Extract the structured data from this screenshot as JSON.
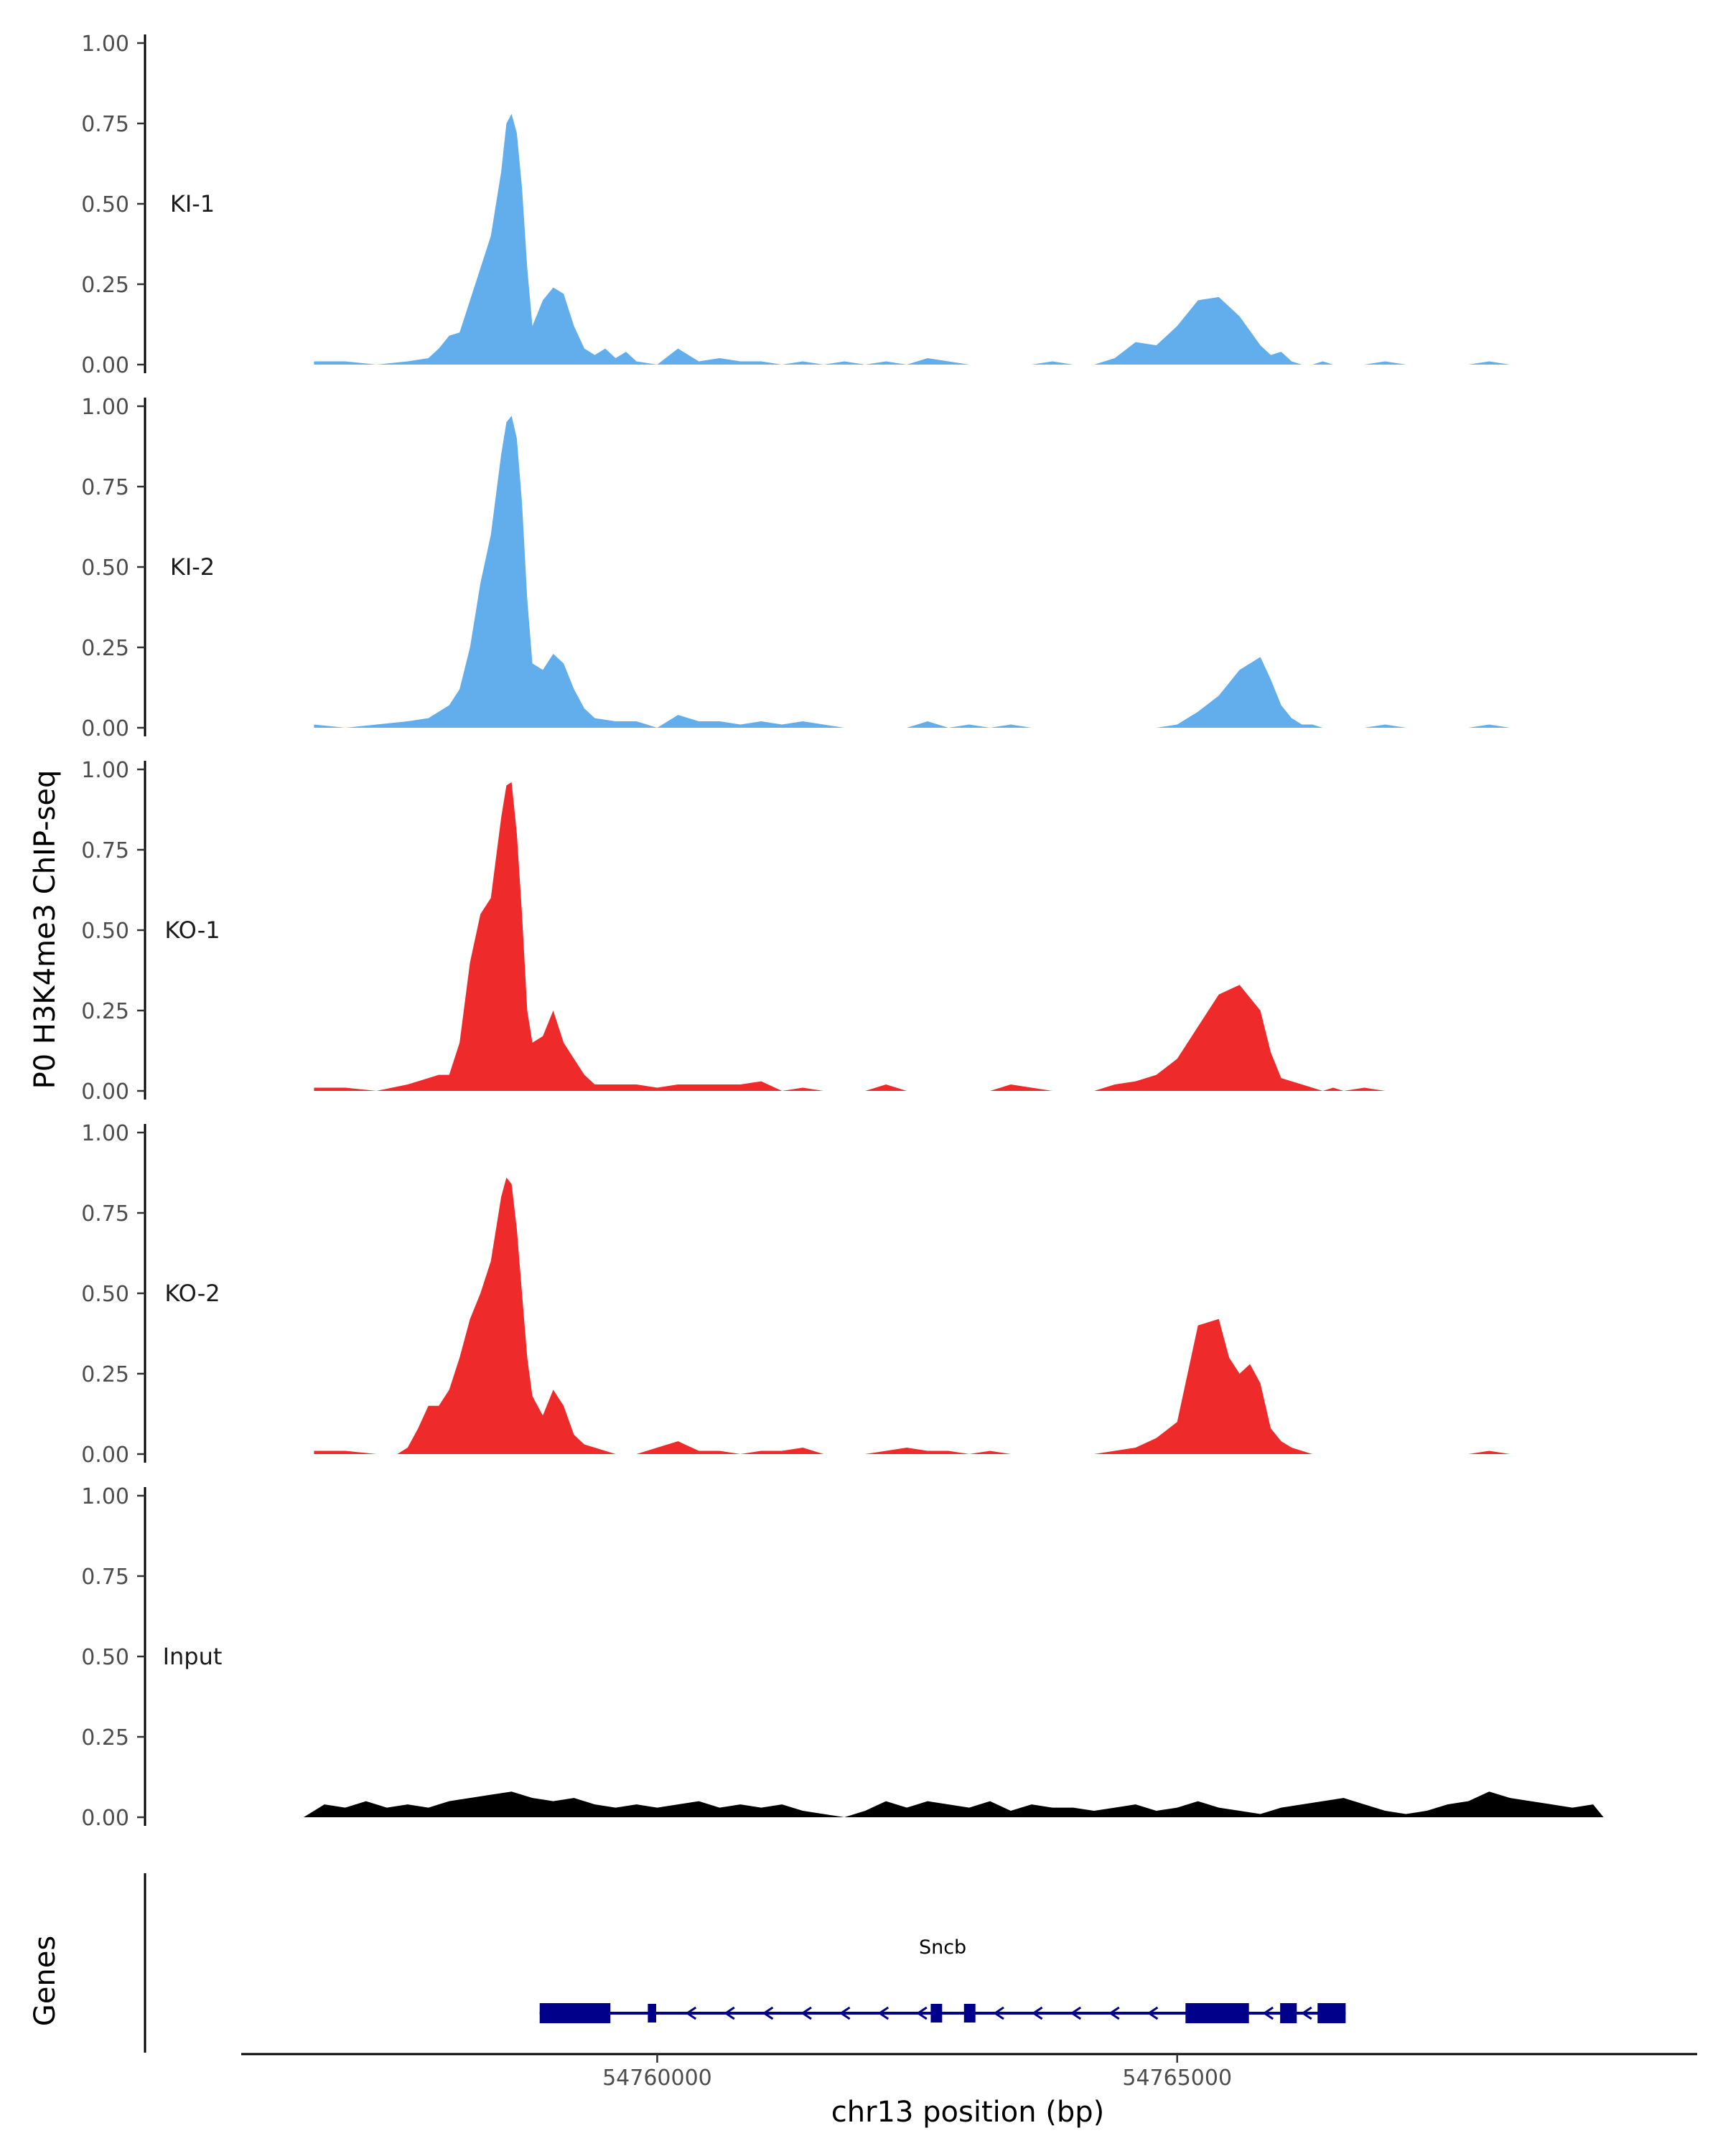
{
  "chart_data": {
    "type": "area",
    "ylabel": "P0 H3K4me3 ChIP-seq",
    "xlabel": "chr13 position (bp)",
    "xlim": [
      54756000,
      54770000
    ],
    "ylim": [
      0,
      1
    ],
    "ytick_labels": [
      "0.00",
      "0.25",
      "0.50",
      "0.75",
      "1.00"
    ],
    "ytick_values": [
      0,
      0.25,
      0.5,
      0.75,
      1
    ],
    "xtick_labels": [
      "54760000",
      "54765000"
    ],
    "xtick_values": [
      54760000,
      54765000
    ],
    "track_label_title": "Genes",
    "tracks": [
      {
        "name": "KI-1",
        "color": "#62aeec",
        "x": [
          54756700,
          54757000,
          54757300,
          54757600,
          54757800,
          54757900,
          54758000,
          54758100,
          54758200,
          54758300,
          54758400,
          54758500,
          54758550,
          54758600,
          54758650,
          54758700,
          54758750,
          54758800,
          54758900,
          54759000,
          54759100,
          54759200,
          54759300,
          54759400,
          54759500,
          54759600,
          54759700,
          54759800,
          54760000,
          54760200,
          54760400,
          54760600,
          54760800,
          54761000,
          54761200,
          54761400,
          54761600,
          54761800,
          54762000,
          54762200,
          54762400,
          54762600,
          54762800,
          54763000,
          54763200,
          54763400,
          54763600,
          54763800,
          54764000,
          54764200,
          54764400,
          54764600,
          54764800,
          54765000,
          54765200,
          54765400,
          54765600,
          54765800,
          54765900,
          54766000,
          54766100,
          54766200,
          54766300,
          54766400,
          54766500,
          54766600,
          54766700,
          54766800,
          54767000,
          54767200,
          54767400,
          54767600,
          54767800,
          54768000,
          54768200,
          54768400,
          54768600,
          54768800,
          54769000,
          54769100
        ],
        "y": [
          0.01,
          0.01,
          0.0,
          0.01,
          0.02,
          0.05,
          0.09,
          0.1,
          0.2,
          0.3,
          0.4,
          0.6,
          0.75,
          0.78,
          0.72,
          0.55,
          0.3,
          0.12,
          0.2,
          0.24,
          0.22,
          0.12,
          0.05,
          0.03,
          0.05,
          0.02,
          0.04,
          0.01,
          0.0,
          0.05,
          0.01,
          0.02,
          0.01,
          0.01,
          0.0,
          0.01,
          0.0,
          0.01,
          0.0,
          0.01,
          0.0,
          0.02,
          0.01,
          0.0,
          0.0,
          0.0,
          0.0,
          0.01,
          0.0,
          0.0,
          0.02,
          0.07,
          0.06,
          0.12,
          0.2,
          0.21,
          0.15,
          0.06,
          0.03,
          0.04,
          0.01,
          0.0,
          0.0,
          0.01,
          0.0,
          0.0,
          0.0,
          0.0,
          0.01,
          0.0,
          0.0,
          0.0,
          0.0,
          0.01,
          0.0,
          0.0,
          0.0,
          0.0,
          0.0,
          0.0
        ]
      },
      {
        "name": "KI-2",
        "color": "#62aeec",
        "x": [
          54756700,
          54757000,
          54757300,
          54757600,
          54757800,
          54757900,
          54758000,
          54758100,
          54758200,
          54758300,
          54758400,
          54758500,
          54758550,
          54758600,
          54758650,
          54758700,
          54758750,
          54758800,
          54758900,
          54759000,
          54759100,
          54759200,
          54759300,
          54759400,
          54759600,
          54759800,
          54760000,
          54760200,
          54760400,
          54760600,
          54760800,
          54761000,
          54761200,
          54761400,
          54761600,
          54761800,
          54762000,
          54762200,
          54762400,
          54762600,
          54762800,
          54763000,
          54763200,
          54763400,
          54763600,
          54763800,
          54764000,
          54764200,
          54764400,
          54764600,
          54764800,
          54765000,
          54765200,
          54765400,
          54765600,
          54765800,
          54765900,
          54766000,
          54766100,
          54766200,
          54766300,
          54766400,
          54766500,
          54766600,
          54766800,
          54767000,
          54767200,
          54767400,
          54767600,
          54767800,
          54768000,
          54768200,
          54768400,
          54768600,
          54768800,
          54769000,
          54769100
        ],
        "y": [
          0.01,
          0.0,
          0.01,
          0.02,
          0.03,
          0.05,
          0.07,
          0.12,
          0.25,
          0.45,
          0.6,
          0.85,
          0.95,
          0.97,
          0.9,
          0.7,
          0.4,
          0.2,
          0.18,
          0.23,
          0.2,
          0.12,
          0.06,
          0.03,
          0.02,
          0.02,
          0.0,
          0.04,
          0.02,
          0.02,
          0.01,
          0.02,
          0.01,
          0.02,
          0.01,
          0.0,
          0.0,
          0.0,
          0.0,
          0.02,
          0.0,
          0.01,
          0.0,
          0.01,
          0.0,
          0.0,
          0.0,
          0.0,
          0.0,
          0.0,
          0.0,
          0.01,
          0.05,
          0.1,
          0.18,
          0.22,
          0.15,
          0.07,
          0.03,
          0.01,
          0.01,
          0.0,
          0.0,
          0.0,
          0.0,
          0.01,
          0.0,
          0.0,
          0.0,
          0.0,
          0.01,
          0.0,
          0.0,
          0.0,
          0.0,
          0.0,
          0.0
        ]
      },
      {
        "name": "KO-1",
        "color": "#ee2a2a",
        "x": [
          54756700,
          54757000,
          54757300,
          54757600,
          54757800,
          54757900,
          54758000,
          54758100,
          54758200,
          54758300,
          54758400,
          54758500,
          54758550,
          54758600,
          54758650,
          54758700,
          54758750,
          54758800,
          54758900,
          54759000,
          54759100,
          54759200,
          54759300,
          54759400,
          54759600,
          54759800,
          54760000,
          54760200,
          54760400,
          54760600,
          54760800,
          54761000,
          54761200,
          54761400,
          54761600,
          54761800,
          54762000,
          54762200,
          54762400,
          54762600,
          54762800,
          54763000,
          54763200,
          54763400,
          54763600,
          54763800,
          54764000,
          54764200,
          54764400,
          54764600,
          54764800,
          54765000,
          54765200,
          54765400,
          54765600,
          54765800,
          54765900,
          54766000,
          54766100,
          54766200,
          54766300,
          54766400,
          54766500,
          54766600,
          54766800,
          54767000,
          54767200,
          54767400,
          54767600,
          54767800,
          54768000,
          54768200,
          54768400,
          54768600,
          54768800,
          54769000
        ],
        "y": [
          0.01,
          0.01,
          0.0,
          0.02,
          0.04,
          0.05,
          0.05,
          0.15,
          0.4,
          0.55,
          0.6,
          0.85,
          0.95,
          0.96,
          0.8,
          0.55,
          0.25,
          0.15,
          0.17,
          0.25,
          0.15,
          0.1,
          0.05,
          0.02,
          0.02,
          0.02,
          0.01,
          0.02,
          0.02,
          0.02,
          0.02,
          0.03,
          0.0,
          0.01,
          0.0,
          0.0,
          0.0,
          0.02,
          0.0,
          0.0,
          0.0,
          0.0,
          0.0,
          0.02,
          0.01,
          0.0,
          0.0,
          0.0,
          0.02,
          0.03,
          0.05,
          0.1,
          0.2,
          0.3,
          0.33,
          0.25,
          0.12,
          0.04,
          0.03,
          0.02,
          0.01,
          0.0,
          0.01,
          0.0,
          0.01,
          0.0,
          0.0,
          0.0,
          0.0,
          0.0,
          0.0,
          0.0,
          0.0,
          0.0,
          0.0,
          0.0
        ]
      },
      {
        "name": "KO-2",
        "color": "#ee2a2a",
        "x": [
          54756700,
          54757000,
          54757300,
          54757500,
          54757600,
          54757700,
          54757800,
          54757900,
          54758000,
          54758100,
          54758200,
          54758300,
          54758400,
          54758500,
          54758550,
          54758600,
          54758650,
          54758700,
          54758750,
          54758800,
          54758900,
          54759000,
          54759100,
          54759200,
          54759300,
          54759400,
          54759600,
          54759800,
          54760000,
          54760200,
          54760400,
          54760600,
          54760800,
          54761000,
          54761200,
          54761400,
          54761600,
          54761800,
          54762000,
          54762200,
          54762400,
          54762600,
          54762800,
          54763000,
          54763200,
          54763400,
          54763600,
          54763800,
          54764000,
          54764200,
          54764400,
          54764600,
          54764800,
          54765000,
          54765200,
          54765400,
          54765500,
          54765600,
          54765700,
          54765800,
          54765900,
          54766000,
          54766100,
          54766200,
          54766300,
          54766400,
          54766500,
          54766600,
          54766800,
          54767000,
          54767200,
          54767400,
          54767600,
          54767800,
          54768000,
          54768200,
          54768400,
          54768600,
          54768800
        ],
        "y": [
          0.01,
          0.01,
          0.0,
          0.0,
          0.02,
          0.08,
          0.15,
          0.15,
          0.2,
          0.3,
          0.42,
          0.5,
          0.6,
          0.8,
          0.86,
          0.84,
          0.7,
          0.5,
          0.3,
          0.18,
          0.12,
          0.2,
          0.15,
          0.06,
          0.03,
          0.02,
          0.0,
          0.0,
          0.02,
          0.04,
          0.01,
          0.01,
          0.0,
          0.01,
          0.01,
          0.02,
          0.0,
          0.0,
          0.0,
          0.01,
          0.02,
          0.01,
          0.01,
          0.0,
          0.01,
          0.0,
          0.0,
          0.0,
          0.0,
          0.0,
          0.01,
          0.02,
          0.05,
          0.1,
          0.4,
          0.42,
          0.3,
          0.25,
          0.28,
          0.22,
          0.08,
          0.04,
          0.02,
          0.01,
          0.0,
          0.0,
          0.0,
          0.0,
          0.0,
          0.0,
          0.0,
          0.0,
          0.0,
          0.0,
          0.01,
          0.0,
          0.0,
          0.0,
          0.0
        ]
      },
      {
        "name": "Input",
        "color": "#000000",
        "x": [
          54756600,
          54756800,
          54757000,
          54757200,
          54757400,
          54757600,
          54757800,
          54758000,
          54758200,
          54758400,
          54758600,
          54758800,
          54759000,
          54759200,
          54759400,
          54759600,
          54759800,
          54760000,
          54760200,
          54760400,
          54760600,
          54760800,
          54761000,
          54761200,
          54761400,
          54761600,
          54761800,
          54762000,
          54762200,
          54762400,
          54762600,
          54762800,
          54763000,
          54763200,
          54763400,
          54763600,
          54763800,
          54764000,
          54764200,
          54764400,
          54764600,
          54764800,
          54765000,
          54765200,
          54765400,
          54765600,
          54765800,
          54766000,
          54766200,
          54766400,
          54766600,
          54766800,
          54767000,
          54767200,
          54767400,
          54767600,
          54767800,
          54768000,
          54768200,
          54768400,
          54768600,
          54768800,
          54769000,
          54769100
        ],
        "y": [
          0.0,
          0.04,
          0.03,
          0.05,
          0.03,
          0.04,
          0.03,
          0.05,
          0.06,
          0.07,
          0.08,
          0.06,
          0.05,
          0.06,
          0.04,
          0.03,
          0.04,
          0.03,
          0.04,
          0.05,
          0.03,
          0.04,
          0.03,
          0.04,
          0.02,
          0.01,
          0.0,
          0.02,
          0.05,
          0.03,
          0.05,
          0.04,
          0.03,
          0.05,
          0.02,
          0.04,
          0.03,
          0.03,
          0.02,
          0.03,
          0.04,
          0.02,
          0.03,
          0.05,
          0.03,
          0.02,
          0.01,
          0.03,
          0.04,
          0.05,
          0.06,
          0.04,
          0.02,
          0.01,
          0.02,
          0.04,
          0.05,
          0.08,
          0.06,
          0.05,
          0.04,
          0.03,
          0.04,
          0.0
        ]
      }
    ],
    "genes": [
      {
        "name": "Sncb",
        "color": "#00008b",
        "start": 54758870,
        "end": 54766620,
        "strand": "-",
        "exons": [
          [
            54758870,
            54759550
          ],
          [
            54759910,
            54759990
          ],
          [
            54762630,
            54762740
          ],
          [
            54762950,
            54763060
          ],
          [
            54765080,
            54765690
          ],
          [
            54765990,
            54766150
          ],
          [
            54766350,
            54766620
          ]
        ]
      }
    ]
  }
}
